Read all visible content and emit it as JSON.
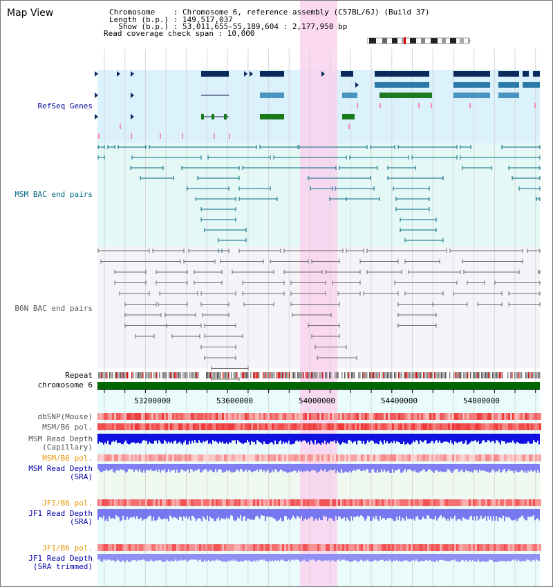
{
  "page": {
    "title": "Map View"
  },
  "info": {
    "line1": "Chromosome    : Chromosome 6, reference assembly (C57BL/6J) (Build 37)",
    "line2": "Length (b.p.) : 149,517,037",
    "line3": "  Show (b.p.) : 53,011,655-55,189,604 : 2,177,950 bp",
    "line4": "Read coverage check span : 10,000"
  },
  "tracks": {
    "refseq": "RefSeq Genes",
    "msm_bac": "MSM BAC end pairs",
    "b6n_bac": "B6N BAC end pairs",
    "repeat": "Repeat",
    "chromosome": "chromosome 6",
    "dbsnp": "dbSNP(Mouse)",
    "msm_b6_pol": "MSM/B6 pol.",
    "msm_depth_cap_1": "MSM Read Depth",
    "msm_depth_cap_2": "(Capillary)",
    "msm_b6_pol_sra": "MSM/B6 pol.",
    "msm_depth_sra_1": "MSM Read Depth",
    "msm_depth_sra_2": "(SRA)",
    "jf1_b6_pol": "JF1/B6 pol.",
    "jf1_depth_sra_1": "JF1 Read Depth",
    "jf1_depth_sra_2": "(SRA)",
    "jf1_b6_pol_trim": "JF1/B6 pol.",
    "jf1_depth_trim_1": "JF1 Read Depth",
    "jf1_depth_trim_2": "(SRA trimmed)"
  },
  "colors": {
    "refseq_label": "#000099",
    "msm_label": "#006680",
    "b6n_label": "#555555",
    "orange_label": "#e69500",
    "blue_label": "#0000aa",
    "highlight": "#f9d2ef",
    "chromosome_bar": "#006600",
    "depth_dark": "#0000dd",
    "depth_light": "#7f7ff5"
  },
  "axis": {
    "ticks": [
      "53200000",
      "53600000",
      "54000000",
      "54400000",
      "54800000"
    ]
  }
}
